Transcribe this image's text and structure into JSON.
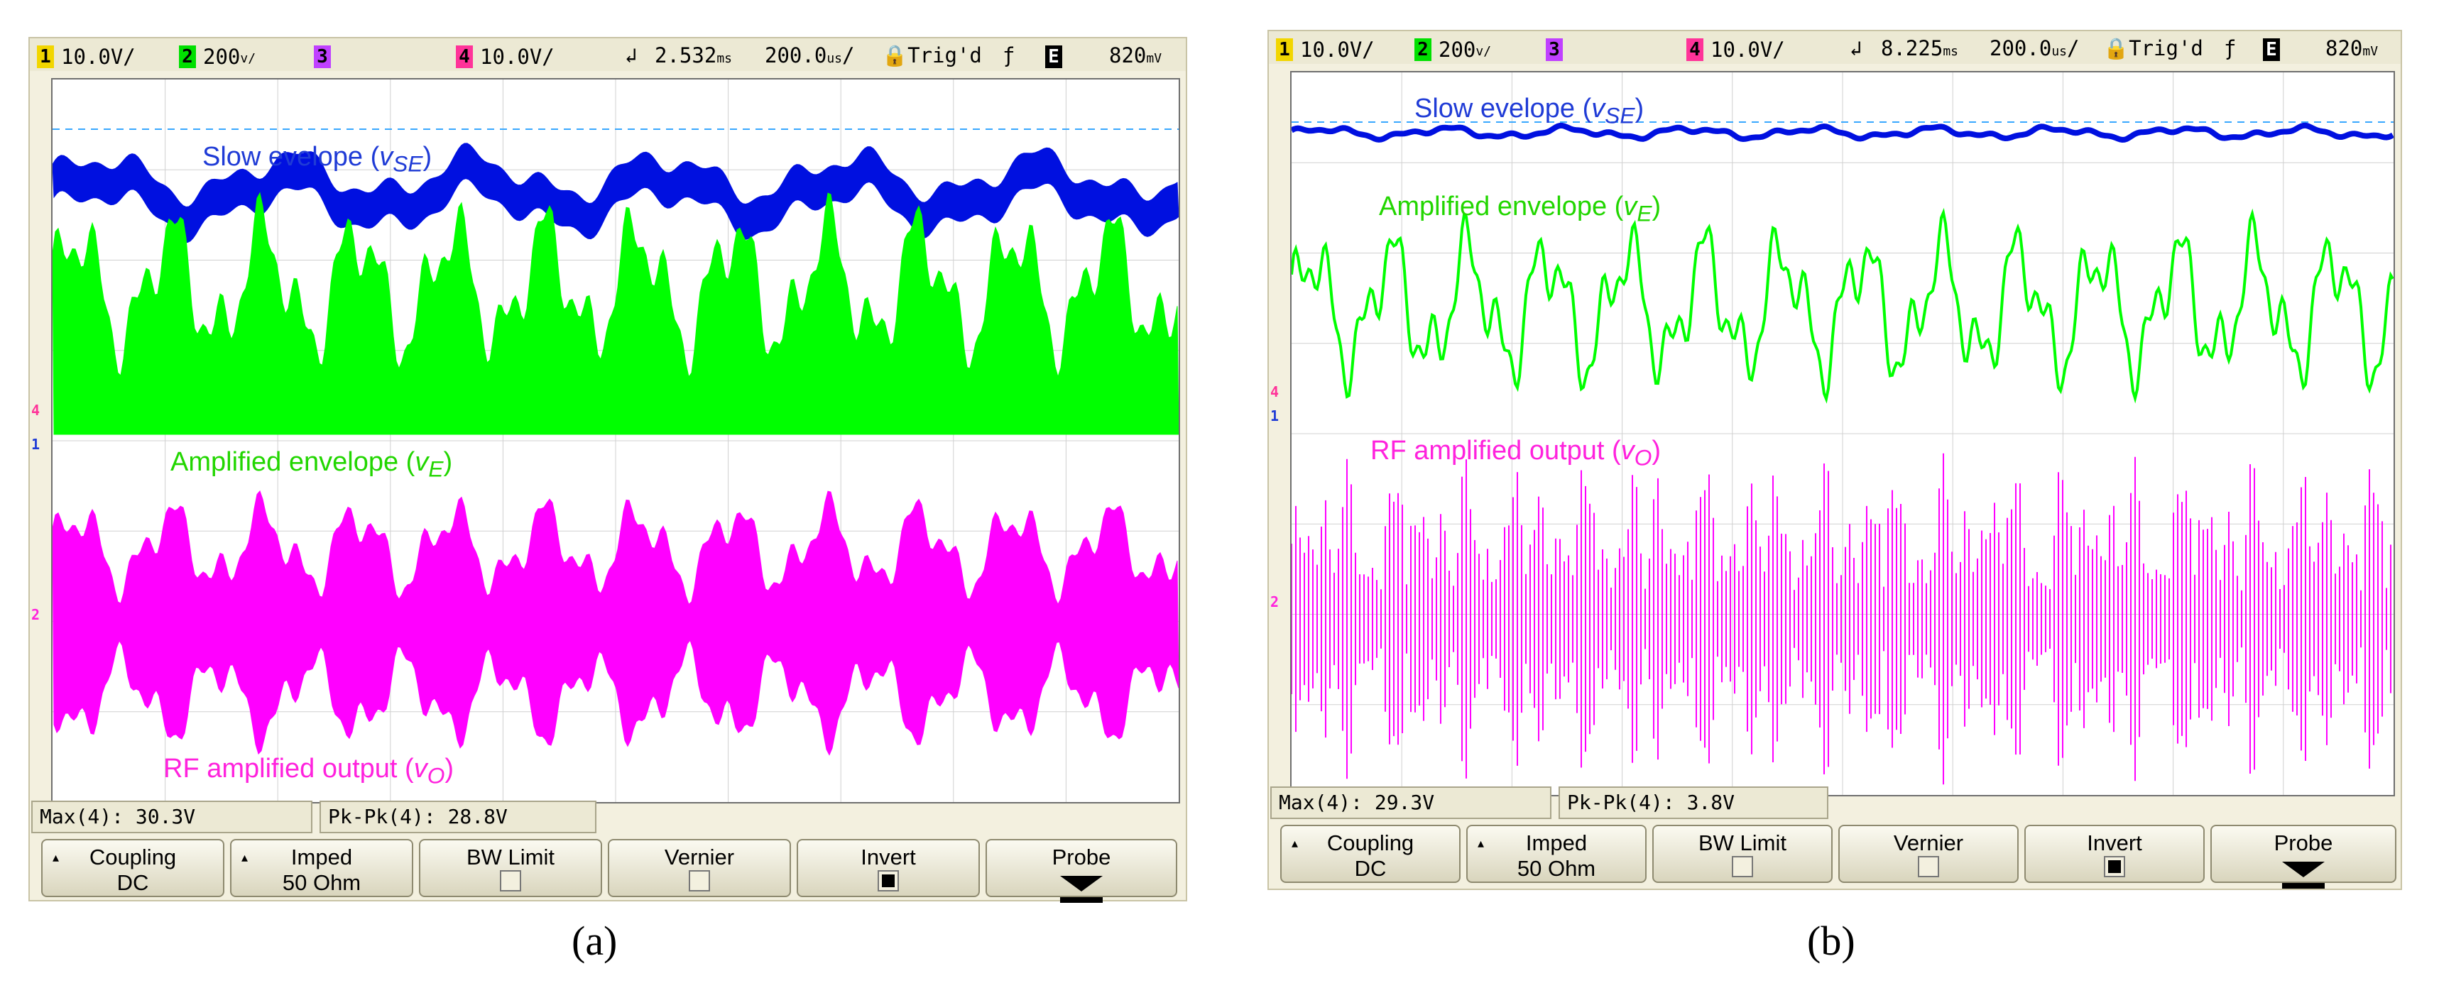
{
  "panels": [
    {
      "id": "a",
      "status": {
        "ch1_label": "1",
        "ch1_scale": "10.0V/",
        "ch2_label": "2",
        "ch2_scale": "200",
        "ch3_label": "3",
        "ch4_label": "4",
        "ch4_scale": "10.0V/",
        "trigger_time": "2.532",
        "timebase": "200.0",
        "trig_status": "Trig'd",
        "ext_label": "E",
        "ext_level": "820"
      },
      "labels": {
        "slow": "Slow evelope",
        "slow_sym": "v",
        "slow_sub": "SE",
        "amp": "Amplified envelope",
        "amp_sym": "v",
        "amp_sub": "E",
        "rf": "RF amplified output",
        "rf_sym": "v",
        "rf_sub": "O"
      },
      "measurements": {
        "max": "Max(4): 30.3V",
        "pkpk": "Pk-Pk(4): 28.8V"
      },
      "softkeys": {
        "coupling": "Coupling",
        "coupling_value": "DC",
        "imped": "Imped",
        "imped_value": "50 Ohm",
        "bw_limit": "BW Limit",
        "vernier": "Vernier",
        "invert": "Invert",
        "probe": "Probe"
      },
      "invert_checked": true,
      "markers": {
        "m4": "4",
        "m1": "1",
        "m2": "2"
      },
      "caption": "(a)"
    },
    {
      "id": "b",
      "status": {
        "ch1_label": "1",
        "ch1_scale": "10.0V/",
        "ch2_label": "2",
        "ch2_scale": "200",
        "ch3_label": "3",
        "ch4_label": "4",
        "ch4_scale": "10.0V/",
        "trigger_time": "8.225",
        "timebase": "200.0",
        "trig_status": "Trig'd",
        "ext_label": "E",
        "ext_level": "820"
      },
      "labels": {
        "slow": "Slow evelope",
        "slow_sym": "v",
        "slow_sub": "SE",
        "amp": "Amplified envelope",
        "amp_sym": "v",
        "amp_sub": "E",
        "rf": "RF amplified output",
        "rf_sym": "v",
        "rf_sub": "O"
      },
      "measurements": {
        "max": "Max(4): 29.3V",
        "pkpk": "Pk-Pk(4): 3.8V"
      },
      "softkeys": {
        "coupling": "Coupling",
        "coupling_value": "DC",
        "imped": "Imped",
        "imped_value": "50 Ohm",
        "bw_limit": "BW Limit",
        "vernier": "Vernier",
        "invert": "Invert",
        "probe": "Probe"
      },
      "invert_checked": true,
      "markers": {
        "m4": "4",
        "m1": "1",
        "m2": "2"
      },
      "caption": "(b)"
    }
  ],
  "colors": {
    "ch1": "#f2d600",
    "ch2": "#00e000",
    "ch3": "#c040ff",
    "ch4": "#ff3399",
    "slow_trace": "#0010e0",
    "amp_trace": "#00ff00",
    "rf_trace": "#ff00ff",
    "slow_label": "#1f3bd6",
    "amp_label": "#22d600",
    "rf_label": "#ff22dd",
    "grid": "#d0d0d0",
    "cursor_line": "#38a8ff"
  }
}
